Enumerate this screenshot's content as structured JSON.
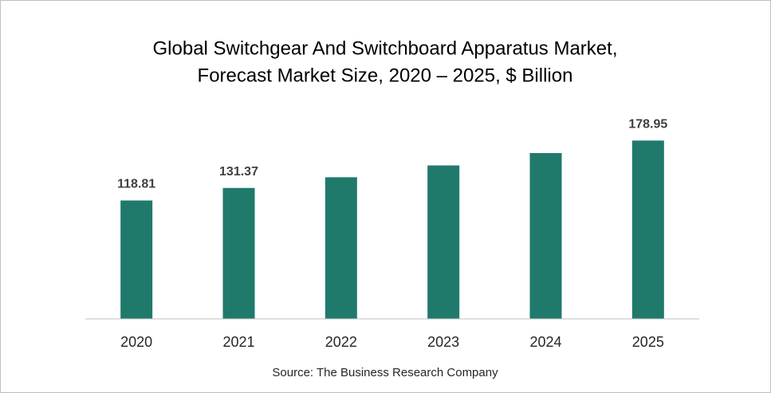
{
  "chart_data": {
    "type": "bar",
    "title": [
      "Global Switchgear And Switchboard Apparatus Market,",
      "Forecast Market Size, 2020 – 2025, $ Billion"
    ],
    "categories": [
      "2020",
      "2021",
      "2022",
      "2023",
      "2024",
      "2025"
    ],
    "values": [
      118.81,
      131.37,
      142.1,
      154.0,
      166.4,
      178.95
    ],
    "value_labels": [
      "118.81",
      "131.37",
      null,
      null,
      null,
      "178.95"
    ],
    "color": "#1f7a6c",
    "ylim": [
      0,
      200
    ],
    "source": "Source: The Business Research Company"
  }
}
